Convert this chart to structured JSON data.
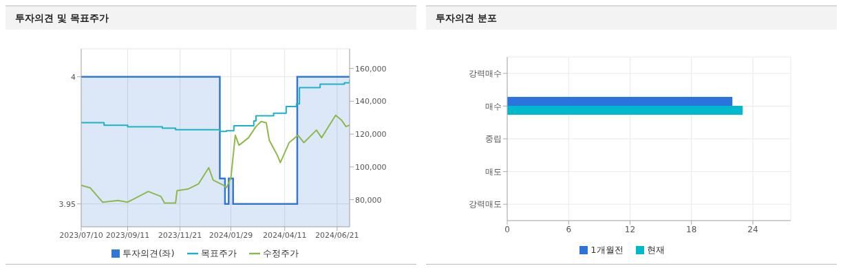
{
  "chart_data": [
    {
      "type": "line",
      "title": "투자의견 및 목표주가",
      "xlim": [
        "2023-07-10",
        "2024-07-08"
      ],
      "xticks": [
        {
          "value": "2023-07-10",
          "label": "2023/07/10"
        },
        {
          "value": "2023-09-11",
          "label": "2023/09/11"
        },
        {
          "value": "2023-11-21",
          "label": "2023/11/21"
        },
        {
          "value": "2024-01-29",
          "label": "2024/01/29"
        },
        {
          "value": "2024-04-11",
          "label": "2024/04/11"
        },
        {
          "value": "2024-06-21",
          "label": "2024/06/21"
        }
      ],
      "ylim": [
        3.941,
        4.011
      ],
      "yticks": [
        3.95,
        4
      ],
      "y2lim": [
        63500,
        172000
      ],
      "y2ticks": [
        {
          "value": 80000,
          "label": "80,000"
        },
        {
          "value": 100000,
          "label": "100,000"
        },
        {
          "value": 120000,
          "label": "120,000"
        },
        {
          "value": 140000,
          "label": "140,000"
        },
        {
          "value": 160000,
          "label": "160,000"
        }
      ],
      "grid": true,
      "legend": "bottom",
      "series": [
        {
          "name": "투자의견(좌)",
          "type": "area",
          "color": "#3078d4",
          "x": [
            "2023-07-10",
            "2024-01-14",
            "2024-01-14",
            "2024-01-21",
            "2024-01-21",
            "2024-01-26",
            "2024-01-26",
            "2024-02-01",
            "2024-02-01",
            "2024-04-28",
            "2024-04-28",
            "2024-07-08"
          ],
          "values": [
            4,
            4,
            3.96,
            3.96,
            3.95,
            3.95,
            3.96,
            3.96,
            3.95,
            3.95,
            4,
            4
          ]
        },
        {
          "name": "목표주가",
          "type": "step",
          "axis": "y2",
          "color": "#1ab3c6",
          "x": [
            "2023-07-10",
            "2023-08-10",
            "2023-09-11",
            "2023-10-28",
            "2023-11-15",
            "2024-01-14",
            "2024-01-23",
            "2024-02-02",
            "2024-02-29",
            "2024-03-03",
            "2024-03-27",
            "2024-04-13",
            "2024-04-27",
            "2024-05-01",
            "2024-05-29",
            "2024-07-01",
            "2024-07-08"
          ],
          "values": [
            127000,
            125400,
            124500,
            123600,
            122700,
            121600,
            122000,
            125100,
            128000,
            131200,
            132700,
            136800,
            138400,
            148300,
            150400,
            151300,
            153100
          ]
        },
        {
          "name": "수정주가",
          "type": "line",
          "axis": "y2",
          "color": "#8db84a",
          "x": [
            "2023-07-10",
            "2023-07-22",
            "2023-08-08",
            "2023-08-29",
            "2023-09-11",
            "2023-10-09",
            "2023-10-26",
            "2023-10-31",
            "2023-11-15",
            "2023-11-17",
            "2023-12-02",
            "2023-12-16",
            "2023-12-30",
            "2024-01-05",
            "2024-01-19",
            "2024-01-23",
            "2024-01-29",
            "2024-02-04",
            "2024-02-09",
            "2024-02-22",
            "2024-03-03",
            "2024-03-10",
            "2024-03-17",
            "2024-03-21",
            "2024-04-01",
            "2024-04-05",
            "2024-04-17",
            "2024-04-29",
            "2024-05-07",
            "2024-05-24",
            "2024-05-31",
            "2024-06-19",
            "2024-06-27",
            "2024-07-03",
            "2024-07-08"
          ],
          "values": [
            88800,
            87300,
            78500,
            79500,
            78500,
            85000,
            82000,
            78000,
            78000,
            85500,
            86500,
            89600,
            99500,
            91900,
            88800,
            87300,
            93400,
            119300,
            113200,
            117800,
            124600,
            127700,
            126900,
            116300,
            107100,
            102600,
            114800,
            119300,
            114800,
            122400,
            117800,
            131500,
            128500,
            124600,
            125400
          ]
        }
      ]
    },
    {
      "type": "bar",
      "orientation": "horizontal",
      "title": "투자의견 분포",
      "categories": [
        "강력매수",
        "매수",
        "중립",
        "매도",
        "강력매도"
      ],
      "xlim": [
        0,
        27.7
      ],
      "xticks": [
        0,
        6,
        12,
        18,
        24
      ],
      "grid": true,
      "legend": "bottom",
      "series": [
        {
          "name": "1개월전",
          "color": "#2a74db",
          "values": [
            0,
            22,
            0,
            0,
            0
          ]
        },
        {
          "name": "현재",
          "color": "#00b9cc",
          "values": [
            0,
            23,
            0,
            0,
            0
          ]
        }
      ]
    }
  ]
}
